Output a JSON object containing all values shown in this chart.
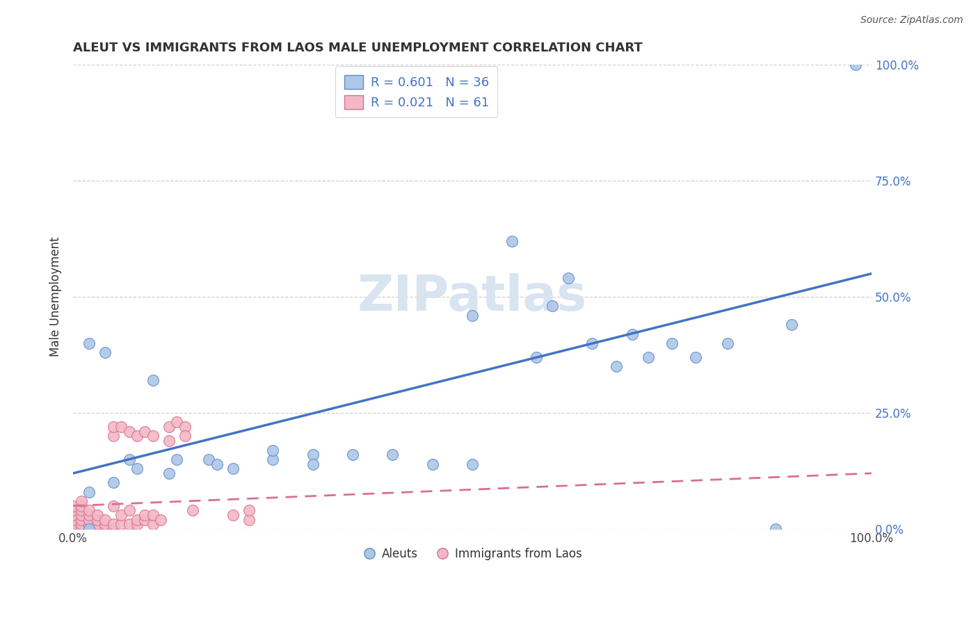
{
  "title": "ALEUT VS IMMIGRANTS FROM LAOS MALE UNEMPLOYMENT CORRELATION CHART",
  "source": "Source: ZipAtlas.com",
  "ylabel": "Male Unemployment",
  "ytick_vals": [
    0.0,
    0.25,
    0.5,
    0.75,
    1.0
  ],
  "ytick_labels": [
    "0.0%",
    "25.0%",
    "50.0%",
    "75.0%",
    "100.0%"
  ],
  "xtick_vals": [
    0.0,
    1.0
  ],
  "xtick_labels": [
    "0.0%",
    "100.0%"
  ],
  "aleut_R": 0.601,
  "aleut_N": 36,
  "laos_R": 0.021,
  "laos_N": 61,
  "aleut_color": "#aec6e8",
  "aleut_edge_color": "#5b8ec4",
  "aleut_line_color": "#4472c4",
  "laos_color": "#f2b8c6",
  "laos_edge_color": "#d87090",
  "laos_line_color": "#d87090",
  "background_color": "#ffffff",
  "grid_color": "#cccccc",
  "title_color": "#333333",
  "right_tick_color": "#4472c4",
  "watermark_color": "#d8e4f0",
  "aleut_x": [
    0.02,
    0.04,
    0.02,
    0.07,
    0.1,
    0.13,
    0.17,
    0.2,
    0.25,
    0.3,
    0.25,
    0.3,
    0.35,
    0.4,
    0.45,
    0.5,
    0.55,
    0.6,
    0.65,
    0.7,
    0.72,
    0.75,
    0.78,
    0.82,
    0.9,
    0.02,
    0.05,
    0.08,
    0.12,
    0.18,
    0.5,
    0.58,
    0.62,
    0.68,
    0.88,
    0.98
  ],
  "aleut_y": [
    0.4,
    0.38,
    0.0,
    0.15,
    0.32,
    0.15,
    0.15,
    0.13,
    0.15,
    0.16,
    0.17,
    0.14,
    0.16,
    0.16,
    0.14,
    0.14,
    0.62,
    0.48,
    0.4,
    0.42,
    0.37,
    0.4,
    0.37,
    0.4,
    0.44,
    0.08,
    0.1,
    0.13,
    0.12,
    0.14,
    0.46,
    0.37,
    0.54,
    0.35,
    0.0,
    1.0
  ],
  "laos_x": [
    0.0,
    0.0,
    0.0,
    0.0,
    0.0,
    0.0,
    0.0,
    0.0,
    0.0,
    0.0,
    0.01,
    0.01,
    0.01,
    0.01,
    0.01,
    0.01,
    0.01,
    0.01,
    0.02,
    0.02,
    0.02,
    0.02,
    0.02,
    0.02,
    0.03,
    0.03,
    0.03,
    0.03,
    0.04,
    0.04,
    0.04,
    0.05,
    0.05,
    0.05,
    0.06,
    0.06,
    0.07,
    0.07,
    0.08,
    0.08,
    0.09,
    0.09,
    0.1,
    0.1,
    0.11,
    0.12,
    0.13,
    0.14,
    0.15,
    0.2,
    0.22,
    0.22,
    0.05,
    0.05,
    0.06,
    0.07,
    0.08,
    0.09,
    0.1,
    0.12,
    0.14
  ],
  "laos_y": [
    0.0,
    0.0,
    0.0,
    0.0,
    0.0,
    0.01,
    0.02,
    0.03,
    0.04,
    0.05,
    0.0,
    0.0,
    0.01,
    0.02,
    0.03,
    0.04,
    0.05,
    0.06,
    0.0,
    0.0,
    0.01,
    0.02,
    0.03,
    0.04,
    0.0,
    0.01,
    0.02,
    0.03,
    0.0,
    0.01,
    0.02,
    0.0,
    0.01,
    0.05,
    0.01,
    0.03,
    0.01,
    0.04,
    0.01,
    0.02,
    0.02,
    0.03,
    0.01,
    0.03,
    0.02,
    0.22,
    0.23,
    0.22,
    0.04,
    0.03,
    0.02,
    0.04,
    0.2,
    0.22,
    0.22,
    0.21,
    0.2,
    0.21,
    0.2,
    0.19,
    0.2
  ],
  "aleut_line_x": [
    0.0,
    1.0
  ],
  "aleut_line_y": [
    0.12,
    0.55
  ],
  "laos_line_x": [
    0.0,
    1.0
  ],
  "laos_line_y": [
    0.05,
    0.12
  ]
}
